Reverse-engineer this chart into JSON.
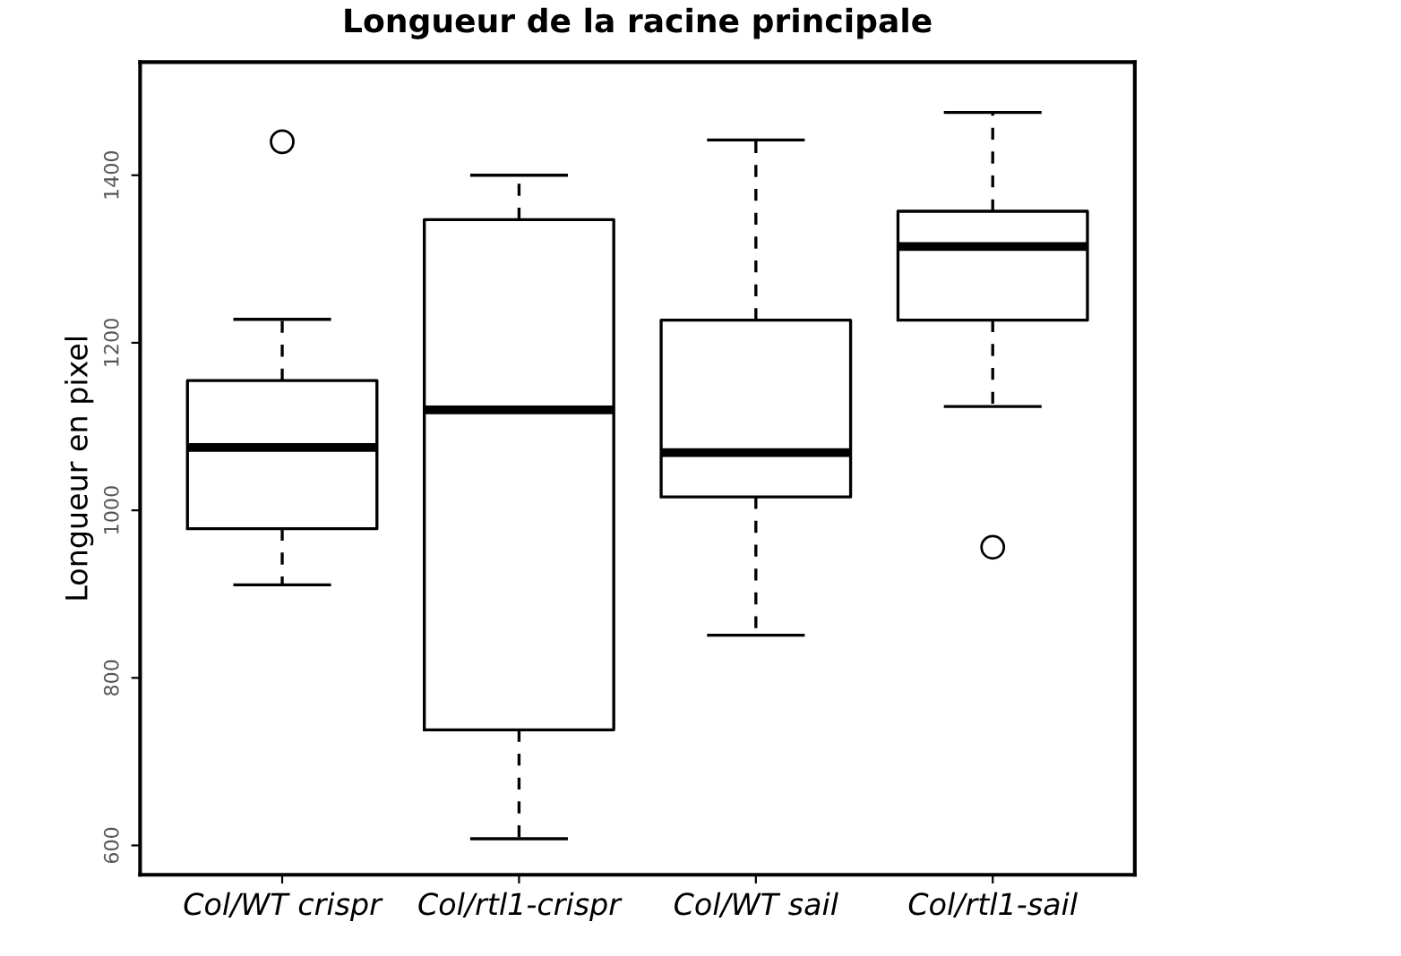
{
  "chart_data": {
    "type": "box",
    "title": "Longueur de la racine principale",
    "ylabel": "Longueur en pixel",
    "categories": [
      "Col/WT crispr",
      "Col/rtl1-crispr",
      "Col/WT sail",
      "Col/rtl1-sail"
    ],
    "boxes": [
      {
        "low": 911,
        "q1": 978,
        "median": 1075,
        "q3": 1155,
        "high": 1228,
        "outliers": [
          1440
        ]
      },
      {
        "low": 608,
        "q1": 738,
        "median": 1120,
        "q3": 1347,
        "high": 1400
      },
      {
        "low": 851,
        "q1": 1016,
        "median": 1069,
        "q3": 1227,
        "high": 1442
      },
      {
        "low": 1124,
        "q1": 1227,
        "median": 1315,
        "q3": 1357,
        "high": 1475,
        "outliers": [
          956
        ]
      }
    ],
    "ylim": [
      565,
      1535
    ],
    "yticks": [
      600,
      800,
      1000,
      1200,
      1400
    ],
    "grid": false
  }
}
